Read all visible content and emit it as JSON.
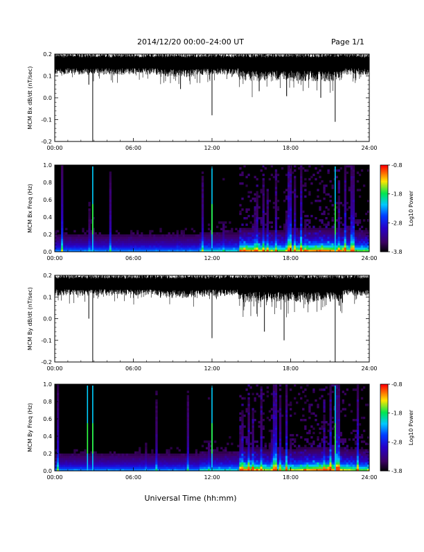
{
  "header": {
    "title": "2014/12/20  00:00–24:00 UT",
    "page": "Page 1/1"
  },
  "footer": {
    "xlabel": "Universal Time (hh:mm)"
  },
  "chart_data": [
    {
      "type": "line",
      "panel": "bx-time-series",
      "ylabel": "MCM Bx dB/dt (nT/sec)",
      "ylim": [
        -0.2,
        0.2
      ],
      "yticks": [
        "0.2",
        "0.1",
        "0.0",
        "-0.1",
        "-0.2"
      ],
      "xticks": [
        "00:00",
        "06:00",
        "12:00",
        "18:00",
        "24:00"
      ],
      "xlim_hours": [
        0,
        24
      ],
      "baseline": 0.155,
      "spikes": [
        {
          "t": 2.9,
          "y": -0.2
        },
        {
          "t": 2.6,
          "y": 0.06
        },
        {
          "t": 9.6,
          "y": 0.04
        },
        {
          "t": 12.0,
          "y": -0.08
        },
        {
          "t": 15.6,
          "y": 0.03
        },
        {
          "t": 20.3,
          "y": 0.0
        },
        {
          "t": 21.4,
          "y": -0.11
        }
      ]
    },
    {
      "type": "heatmap",
      "panel": "bx-spectrogram",
      "ylabel": "MCM Bx Freq (Hz)",
      "ylim": [
        0.0,
        1.0
      ],
      "yticks": [
        "1.0",
        "0.8",
        "0.6",
        "0.4",
        "0.2",
        "0.0"
      ],
      "xticks": [
        "00:00",
        "06:00",
        "12:00",
        "18:00",
        "24:00"
      ],
      "colorbar": {
        "label": "Log10 Power",
        "ticks": [
          "-0.8",
          "-1.8",
          "-2.8",
          "-3.8"
        ],
        "range": [
          -3.8,
          -0.8
        ]
      },
      "bright_lines_hours": [
        2.9,
        12.0,
        21.4
      ]
    },
    {
      "type": "line",
      "panel": "by-time-series",
      "ylabel": "MCM By dB/dt (nT/sec)",
      "ylim": [
        -0.2,
        0.2
      ],
      "yticks": [
        "0.2",
        "0.1",
        "0.0",
        "-0.1",
        "-0.2"
      ],
      "xticks": [
        "00:00",
        "06:00",
        "12:00",
        "18:00",
        "24:00"
      ],
      "xlim_hours": [
        0,
        24
      ],
      "baseline": 0.155,
      "spikes": [
        {
          "t": 2.9,
          "y": -0.2
        },
        {
          "t": 2.6,
          "y": 0.0
        },
        {
          "t": 12.0,
          "y": -0.09
        },
        {
          "t": 16.0,
          "y": -0.06
        },
        {
          "t": 17.5,
          "y": -0.1
        },
        {
          "t": 21.4,
          "y": -0.2
        }
      ]
    },
    {
      "type": "heatmap",
      "panel": "by-spectrogram",
      "ylabel": "MCM By Freq (Hz)",
      "ylim": [
        0.0,
        1.0
      ],
      "yticks": [
        "1.0",
        "0.8",
        "0.6",
        "0.4",
        "0.2",
        "0.0"
      ],
      "xticks": [
        "00:00",
        "06:00",
        "12:00",
        "18:00",
        "24:00"
      ],
      "colorbar": {
        "label": "Log10 Power",
        "ticks": [
          "-0.8",
          "-1.8",
          "-2.8",
          "-3.8"
        ],
        "range": [
          -3.8,
          -0.8
        ]
      },
      "bright_lines_hours": [
        2.5,
        2.9,
        12.0,
        21.4
      ]
    }
  ]
}
